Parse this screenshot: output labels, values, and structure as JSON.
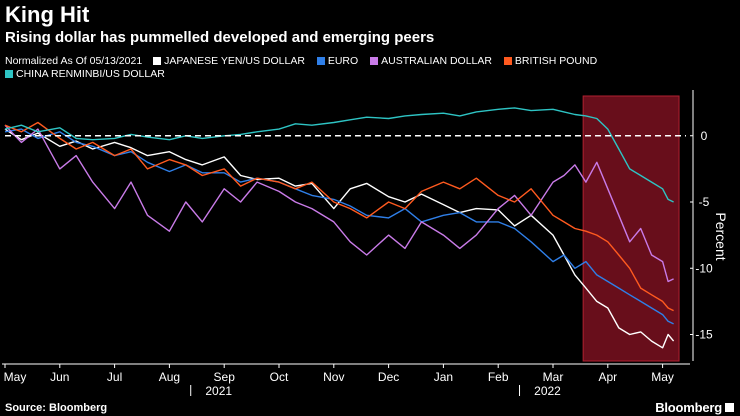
{
  "header": {
    "title": "King Hit",
    "subtitle": "Rising dollar has pummelled developed and emerging peers"
  },
  "footer": {
    "source": "Source: Bloomberg",
    "brand": "Bloomberg"
  },
  "chart_data": {
    "type": "line",
    "title": "King Hit",
    "subtitle": "Rising dollar has pummelled developed and emerging peers",
    "note": "Normalized As Of 05/13/2021",
    "xlabel": "",
    "ylabel": "Percent",
    "ylim": [
      -17,
      3
    ],
    "yticks": [
      0,
      -5,
      -10,
      -15
    ],
    "baseline": 0,
    "x_range": [
      0,
      12.5
    ],
    "x_ticks": [
      {
        "label": "May",
        "x": 0
      },
      {
        "label": "Jun",
        "x": 1
      },
      {
        "label": "Jul",
        "x": 2
      },
      {
        "label": "Aug",
        "x": 3
      },
      {
        "label": "Sep",
        "x": 4
      },
      {
        "label": "Oct",
        "x": 5
      },
      {
        "label": "Nov",
        "x": 6
      },
      {
        "label": "Dec",
        "x": 7
      },
      {
        "label": "Jan",
        "x": 8
      },
      {
        "label": "Feb",
        "x": 9
      },
      {
        "label": "Mar",
        "x": 10
      },
      {
        "label": "Apr",
        "x": 11
      },
      {
        "label": "May",
        "x": 12
      }
    ],
    "year_labels": [
      {
        "label": "2021",
        "x": 3.9
      },
      {
        "label": "2022",
        "x": 9.9
      }
    ],
    "highlight": {
      "x_start": 10.55,
      "x_end": 12.3,
      "color": "#7a1020"
    },
    "series": [
      {
        "name": "JAPANESE YEN/US DOLLAR",
        "color": "#ffffff",
        "x": [
          0,
          0.3,
          0.6,
          1,
          1.3,
          1.6,
          2,
          2.3,
          2.6,
          3,
          3.3,
          3.6,
          4,
          4.3,
          4.6,
          5,
          5.3,
          5.6,
          6,
          6.3,
          6.6,
          7,
          7.3,
          7.6,
          8,
          8.3,
          8.6,
          9,
          9.3,
          9.6,
          10,
          10.2,
          10.4,
          10.6,
          10.8,
          11,
          11.2,
          11.4,
          11.6,
          11.8,
          12,
          12.1,
          12.2
        ],
        "values": [
          0.5,
          -0.3,
          0.2,
          -0.8,
          -0.4,
          -1.0,
          -0.5,
          -0.9,
          -1.5,
          -1.2,
          -1.8,
          -2.2,
          -1.6,
          -3.0,
          -3.3,
          -3.2,
          -3.8,
          -3.6,
          -5.5,
          -4.0,
          -3.6,
          -4.6,
          -5.0,
          -4.4,
          -5.2,
          -5.8,
          -5.5,
          -5.6,
          -6.8,
          -6.0,
          -7.5,
          -9.0,
          -10.5,
          -11.5,
          -12.5,
          -13.0,
          -14.5,
          -15.0,
          -14.8,
          -15.5,
          -16.0,
          -15.0,
          -15.5
        ]
      },
      {
        "name": "EURO",
        "color": "#2f7fe8",
        "x": [
          0,
          0.3,
          0.6,
          1,
          1.3,
          1.6,
          2,
          2.3,
          2.6,
          3,
          3.3,
          3.6,
          4,
          4.3,
          4.6,
          5,
          5.3,
          5.6,
          6,
          6.3,
          6.6,
          7,
          7.3,
          7.6,
          8,
          8.3,
          8.6,
          9,
          9.3,
          9.6,
          10,
          10.2,
          10.4,
          10.6,
          10.8,
          11,
          11.2,
          11.4,
          11.6,
          11.8,
          12,
          12.1,
          12.2
        ],
        "values": [
          0.3,
          0.5,
          -0.2,
          0.3,
          -0.5,
          -0.8,
          -1.5,
          -1.2,
          -2.0,
          -2.7,
          -2.2,
          -2.8,
          -2.8,
          -3.5,
          -3.2,
          -3.5,
          -4.0,
          -4.5,
          -4.8,
          -5.3,
          -6.0,
          -6.2,
          -5.5,
          -6.5,
          -6.0,
          -5.8,
          -6.5,
          -6.5,
          -7.0,
          -8.0,
          -9.5,
          -9.0,
          -10.0,
          -9.5,
          -10.5,
          -11.0,
          -11.5,
          -12.0,
          -12.5,
          -13.0,
          -13.5,
          -14.0,
          -14.2
        ]
      },
      {
        "name": "AUSTRALIAN DOLLAR",
        "color": "#c97be8",
        "x": [
          0,
          0.3,
          0.6,
          1,
          1.3,
          1.6,
          2,
          2.3,
          2.6,
          3,
          3.3,
          3.6,
          4,
          4.3,
          4.6,
          5,
          5.3,
          5.6,
          6,
          6.3,
          6.6,
          7,
          7.3,
          7.6,
          8,
          8.3,
          8.6,
          9,
          9.3,
          9.6,
          10,
          10.2,
          10.4,
          10.6,
          10.8,
          11,
          11.2,
          11.4,
          11.6,
          11.8,
          12,
          12.1,
          12.2
        ],
        "values": [
          0.8,
          -0.5,
          0.5,
          -2.5,
          -1.5,
          -3.5,
          -5.5,
          -3.5,
          -6.0,
          -7.2,
          -5.0,
          -6.5,
          -4.0,
          -5.0,
          -3.5,
          -4.2,
          -5.0,
          -5.5,
          -6.5,
          -8.0,
          -9.0,
          -7.5,
          -8.5,
          -6.5,
          -7.5,
          -8.5,
          -7.5,
          -5.5,
          -4.5,
          -6.0,
          -3.5,
          -3.0,
          -2.2,
          -3.5,
          -2.0,
          -4.0,
          -6.0,
          -8.0,
          -7.0,
          -9.0,
          -9.5,
          -11.0,
          -10.8
        ]
      },
      {
        "name": "BRITISH POUND",
        "color": "#ff5a1f",
        "x": [
          0,
          0.3,
          0.6,
          1,
          1.3,
          1.6,
          2,
          2.3,
          2.6,
          3,
          3.3,
          3.6,
          4,
          4.3,
          4.6,
          5,
          5.3,
          5.6,
          6,
          6.3,
          6.6,
          7,
          7.3,
          7.6,
          8,
          8.3,
          8.6,
          9,
          9.3,
          9.6,
          10,
          10.2,
          10.4,
          10.6,
          10.8,
          11,
          11.2,
          11.4,
          11.6,
          11.8,
          12,
          12.1,
          12.2
        ],
        "values": [
          0.8,
          0.3,
          1.0,
          -0.2,
          -1.0,
          -0.5,
          -1.5,
          -1.0,
          -2.5,
          -1.8,
          -2.2,
          -3.0,
          -2.5,
          -3.8,
          -3.2,
          -3.5,
          -4.0,
          -3.5,
          -5.0,
          -5.5,
          -6.2,
          -5.0,
          -5.5,
          -4.2,
          -3.5,
          -4.0,
          -3.2,
          -4.5,
          -5.0,
          -4.0,
          -6.0,
          -6.5,
          -7.0,
          -7.2,
          -7.5,
          -8.0,
          -9.0,
          -10.0,
          -11.5,
          -12.0,
          -12.5,
          -13.0,
          -13.2
        ]
      },
      {
        "name": "CHINA RENMINBI/US DOLLAR",
        "color": "#2ec4c4",
        "x": [
          0,
          0.3,
          0.6,
          1,
          1.3,
          1.6,
          2,
          2.3,
          2.6,
          3,
          3.3,
          3.6,
          4,
          4.3,
          4.6,
          5,
          5.3,
          5.6,
          6,
          6.3,
          6.6,
          7,
          7.3,
          7.6,
          8,
          8.3,
          8.6,
          9,
          9.3,
          9.6,
          10,
          10.2,
          10.4,
          10.6,
          10.8,
          11,
          11.2,
          11.4,
          11.6,
          11.8,
          12,
          12.1,
          12.2
        ],
        "values": [
          0.5,
          0.8,
          0.3,
          0.6,
          -0.2,
          -0.3,
          -0.2,
          0.1,
          -0.1,
          -0.3,
          0.0,
          -0.2,
          0.0,
          0.1,
          0.3,
          0.5,
          0.9,
          0.8,
          1.0,
          1.2,
          1.4,
          1.3,
          1.5,
          1.6,
          1.7,
          1.5,
          1.8,
          2.0,
          2.1,
          1.9,
          2.0,
          1.8,
          1.6,
          1.5,
          1.3,
          0.5,
          -1.0,
          -2.5,
          -3.0,
          -3.5,
          -4.0,
          -4.8,
          -5.0
        ]
      }
    ]
  }
}
